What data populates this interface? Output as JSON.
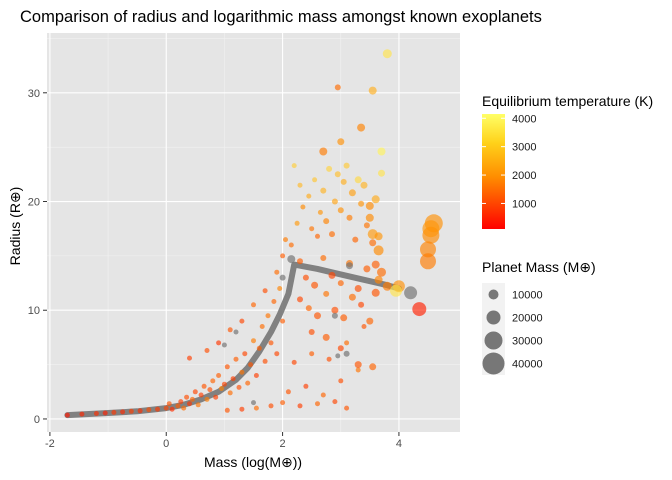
{
  "chart_data": {
    "type": "scatter",
    "title": "Comparison of radius and logarithmic mass amongst known exoplanets",
    "xlabel": "Mass (log(M⊕))",
    "ylabel": "Radius (R⊕)",
    "xlim": [
      -2.05,
      5.05
    ],
    "ylim": [
      -1.2,
      35.5
    ],
    "x_ticks": [
      -2,
      0,
      2,
      4
    ],
    "x_tick_labels": [
      "-2",
      "0",
      "2",
      "4"
    ],
    "y_ticks": [
      0,
      10,
      20,
      30
    ],
    "y_tick_labels": [
      "0",
      "10",
      "20",
      "30"
    ],
    "grid": true,
    "background": "#e5e5e5",
    "color_legend": {
      "title": "Equilibrium temperature (K)",
      "ticks": [
        1000,
        2000,
        3000,
        4000
      ],
      "tick_labels": [
        "1000",
        "2000",
        "3000",
        "4000"
      ],
      "range": [
        100,
        4150
      ],
      "low_color": "#ff0000",
      "mid_color": "#ff8c00",
      "high_color": "#ffff66"
    },
    "size_legend": {
      "title": "Planet Mass (M⊕)",
      "values": [
        10000,
        20000,
        30000,
        40000
      ],
      "labels": [
        "10000",
        "20000",
        "30000",
        "40000"
      ],
      "point_color": "#4d4d4d"
    },
    "trend_line": {
      "color": "#757575",
      "points": [
        [
          -1.7,
          0.35
        ],
        [
          -1.0,
          0.55
        ],
        [
          -0.5,
          0.7
        ],
        [
          0.0,
          1.0
        ],
        [
          0.3,
          1.3
        ],
        [
          0.6,
          1.8
        ],
        [
          0.9,
          2.5
        ],
        [
          1.2,
          3.6
        ],
        [
          1.4,
          4.7
        ],
        [
          1.6,
          6.2
        ],
        [
          1.8,
          8.0
        ],
        [
          1.95,
          9.6
        ],
        [
          2.1,
          11.5
        ],
        [
          2.2,
          14.2
        ],
        [
          2.6,
          13.8
        ],
        [
          3.0,
          13.3
        ],
        [
          3.4,
          12.8
        ],
        [
          3.8,
          12.3
        ],
        [
          4.0,
          12.0
        ]
      ]
    },
    "series": [
      {
        "points": [
          [
            -1.7,
            0.35,
            400
          ],
          [
            -1.45,
            0.45,
            600
          ],
          [
            -1.2,
            0.5,
            700
          ],
          [
            -1.05,
            0.55,
            500
          ],
          [
            -0.9,
            0.6,
            800
          ],
          [
            -0.75,
            0.65,
            650
          ],
          [
            -0.6,
            0.7,
            900
          ],
          [
            -0.45,
            0.75,
            700
          ],
          [
            -0.3,
            0.85,
            1100
          ],
          [
            -0.15,
            0.9,
            850
          ],
          [
            0.0,
            1.0,
            1000
          ],
          [
            0.05,
            1.4,
            1200
          ],
          [
            0.1,
            0.9,
            700
          ],
          [
            0.2,
            1.2,
            1300
          ],
          [
            0.25,
            1.6,
            900
          ],
          [
            0.3,
            1.0,
            1500
          ],
          [
            0.35,
            2.0,
            1100
          ],
          [
            0.4,
            1.4,
            800
          ],
          [
            0.45,
            1.8,
            1400
          ],
          [
            0.5,
            2.5,
            1000
          ],
          [
            0.55,
            1.3,
            1600
          ],
          [
            0.6,
            2.2,
            900
          ],
          [
            0.65,
            3.0,
            1200
          ],
          [
            0.7,
            1.8,
            1700
          ],
          [
            0.75,
            2.7,
            1100
          ],
          [
            0.8,
            3.5,
            1400
          ],
          [
            0.85,
            2.0,
            900
          ],
          [
            0.9,
            4.0,
            1300
          ],
          [
            0.95,
            2.8,
            1800
          ],
          [
            1.0,
            3.2,
            1000
          ],
          [
            1.05,
            4.8,
            1200
          ],
          [
            1.1,
            2.4,
            1500
          ],
          [
            1.15,
            3.7,
            900
          ],
          [
            1.2,
            5.5,
            1300
          ],
          [
            1.25,
            2.9,
            1100
          ],
          [
            1.3,
            4.3,
            1600
          ],
          [
            1.35,
            6.0,
            1000
          ],
          [
            1.4,
            3.3,
            1400
          ],
          [
            1.45,
            5.0,
            1200
          ],
          [
            1.5,
            7.2,
            1700
          ],
          [
            1.55,
            4.0,
            900
          ],
          [
            1.6,
            6.5,
            1300
          ],
          [
            1.65,
            8.5,
            1500
          ],
          [
            1.7,
            5.3,
            1100
          ],
          [
            1.75,
            9.5,
            1600
          ],
          [
            1.8,
            7.0,
            1200
          ],
          [
            1.85,
            10.8,
            1400
          ],
          [
            1.9,
            6.0,
            1000
          ],
          [
            1.95,
            12.0,
            1800
          ],
          [
            2.0,
            9.0,
            1300
          ],
          [
            0.4,
            5.6,
            900
          ],
          [
            0.7,
            6.3,
            1100
          ],
          [
            0.9,
            7.0,
            800
          ],
          [
            1.1,
            8.2,
            1200
          ],
          [
            1.3,
            9.0,
            1000
          ],
          [
            1.5,
            10.5,
            1400
          ],
          [
            1.7,
            11.8,
            1100
          ],
          [
            1.9,
            13.5,
            1500
          ],
          [
            2.0,
            15.0,
            1300
          ],
          [
            2.05,
            16.5,
            1700
          ],
          [
            1.05,
            0.8,
            1200
          ],
          [
            1.3,
            0.9,
            900
          ],
          [
            1.55,
            1.0,
            1500
          ],
          [
            1.8,
            1.2,
            1100
          ],
          [
            2.0,
            1.5,
            1300
          ],
          [
            2.3,
            1.2,
            900
          ],
          [
            2.6,
            1.4,
            1400
          ],
          [
            2.9,
            1.6,
            1000
          ],
          [
            3.1,
            1.0,
            1200
          ],
          [
            2.1,
            2.5,
            1200
          ],
          [
            2.4,
            3.0,
            900
          ],
          [
            2.7,
            2.2,
            1400
          ],
          [
            3.0,
            3.5,
            1100
          ],
          [
            3.3,
            4.5,
            1600
          ],
          [
            2.2,
            5.2,
            1000
          ],
          [
            2.5,
            6.0,
            1300
          ],
          [
            2.8,
            5.5,
            1100
          ],
          [
            3.1,
            7.0,
            1500
          ],
          [
            3.4,
            8.5,
            1200
          ],
          [
            2.15,
            16.0,
            1500
          ],
          [
            2.25,
            18.0,
            2200
          ],
          [
            2.3,
            21.5,
            2800
          ],
          [
            2.2,
            23.3,
            3200
          ],
          [
            2.35,
            19.5,
            1900
          ],
          [
            2.45,
            20.5,
            2500
          ],
          [
            2.5,
            17.5,
            1600
          ],
          [
            2.55,
            22.0,
            3000
          ],
          [
            2.6,
            16.8,
            1400
          ],
          [
            2.65,
            19.0,
            2100
          ],
          [
            2.7,
            21.0,
            2700
          ],
          [
            2.75,
            18.2,
            1800
          ],
          [
            2.8,
            23.0,
            3300
          ],
          [
            2.85,
            17.0,
            1500
          ],
          [
            2.9,
            20.0,
            2400
          ],
          [
            2.95,
            22.5,
            2900
          ],
          [
            3.0,
            19.2,
            2000
          ],
          [
            3.05,
            21.8,
            2600
          ],
          [
            3.1,
            23.3,
            3100
          ],
          [
            3.15,
            18.5,
            1700
          ],
          [
            3.2,
            20.8,
            2300
          ],
          [
            3.25,
            16.5,
            1400
          ],
          [
            3.3,
            22.0,
            3400
          ],
          [
            3.35,
            19.8,
            2100
          ],
          [
            3.4,
            21.5,
            2700
          ],
          [
            3.45,
            17.8,
            1600
          ],
          [
            3.5,
            18.5,
            1900
          ],
          [
            3.55,
            16.2,
            1500
          ],
          [
            3.6,
            20.2,
            2500
          ],
          [
            3.7,
            22.6,
            3600
          ],
          [
            2.3,
            14.5,
            1300
          ],
          [
            2.4,
            13.0,
            1100
          ],
          [
            2.55,
            12.3,
            1200
          ],
          [
            2.7,
            14.8,
            1500
          ],
          [
            2.85,
            13.2,
            1000
          ],
          [
            3.0,
            12.5,
            1400
          ],
          [
            3.15,
            14.3,
            1600
          ],
          [
            3.3,
            12.0,
            1100
          ],
          [
            3.45,
            13.8,
            1300
          ],
          [
            3.6,
            11.6,
            1200
          ],
          [
            2.3,
            11.0,
            1000
          ],
          [
            2.45,
            10.2,
            1400
          ],
          [
            2.6,
            9.5,
            1200
          ],
          [
            2.75,
            11.5,
            1600
          ],
          [
            2.9,
            10.0,
            1100
          ],
          [
            3.05,
            9.3,
            1300
          ],
          [
            3.2,
            11.2,
            1500
          ],
          [
            3.35,
            10.5,
            1000
          ],
          [
            3.5,
            9.0,
            1400
          ],
          [
            3.65,
            12.8,
            1800
          ],
          [
            2.5,
            8.0,
            1100
          ],
          [
            2.75,
            7.5,
            1300
          ],
          [
            3.0,
            6.5,
            1000
          ],
          [
            3.3,
            5.0,
            1200
          ],
          [
            3.55,
            4.8,
            1400
          ],
          [
            3.6,
            14.2,
            1300
          ],
          [
            3.7,
            13.5,
            1500
          ],
          [
            3.8,
            12.2,
            1700
          ],
          [
            3.65,
            15.5,
            1900
          ],
          [
            3.55,
            17.0,
            2200
          ],
          [
            2.95,
            30.5,
            1500
          ],
          [
            3.55,
            30.2,
            2600
          ],
          [
            3.8,
            33.6,
            3600
          ],
          [
            3.7,
            24.6,
            3900
          ],
          [
            3.35,
            26.8,
            1800
          ],
          [
            3.0,
            25.5,
            2000
          ],
          [
            2.7,
            24.6,
            1700
          ],
          [
            3.5,
            19.6,
            1900
          ],
          [
            3.65,
            16.8,
            2100
          ],
          [
            4.35,
            10.1,
            500
          ],
          [
            4.0,
            12.2,
            2000
          ],
          [
            3.95,
            11.8,
            3600
          ]
        ],
        "sizes": [
          5,
          5,
          5,
          5,
          5,
          5,
          5,
          5,
          5,
          5,
          5,
          5,
          5,
          5,
          5,
          5,
          5,
          5,
          5,
          5,
          5,
          5,
          5,
          5,
          5,
          5,
          5,
          5,
          5,
          5,
          5,
          5,
          5,
          5,
          5,
          5,
          5,
          5,
          5,
          5,
          5,
          5,
          5,
          5,
          5,
          5,
          5,
          5,
          5,
          5,
          5,
          5,
          5,
          5,
          5,
          5,
          5,
          5,
          5,
          5,
          5,
          5,
          5,
          5,
          5,
          5,
          5,
          5,
          5,
          5,
          5,
          5,
          5,
          5,
          5,
          5,
          5,
          5,
          5,
          5,
          5,
          5,
          5,
          5,
          5,
          5,
          5,
          5,
          5,
          6,
          6,
          6,
          6,
          6,
          6,
          6,
          6,
          6,
          6,
          7,
          6,
          7,
          6,
          7,
          6,
          8,
          7,
          8,
          7,
          6,
          6,
          7,
          6,
          7,
          6,
          7,
          7,
          7,
          8,
          6,
          6,
          7,
          6,
          7,
          7,
          7,
          6,
          7,
          8,
          6,
          7,
          6,
          7,
          7,
          8,
          9,
          9,
          10,
          10,
          6,
          8,
          9,
          8,
          8,
          7,
          8,
          8,
          8,
          14,
          12,
          12
        ]
      },
      {
        "name": "",
        "points": [
          [
            4.6,
            18.0,
            2000
          ],
          [
            4.55,
            16.9,
            1900
          ],
          [
            4.5,
            15.6,
            1800
          ],
          [
            4.5,
            14.5,
            1700
          ],
          [
            4.55,
            17.5,
            2100
          ]
        ],
        "sizes": [
          18,
          17,
          16,
          16,
          17
        ]
      },
      {
        "points": [
          [
            1.5,
            1.5,
            null
          ],
          [
            2.0,
            13.0,
            null
          ],
          [
            1.0,
            6.8,
            null
          ],
          [
            2.9,
            9.5,
            null
          ],
          [
            3.1,
            6.0,
            null
          ],
          [
            2.95,
            5.8,
            null
          ],
          [
            3.15,
            14.1,
            null
          ],
          [
            4.2,
            11.6,
            null
          ],
          [
            2.15,
            14.7,
            null
          ],
          [
            1.2,
            8.0,
            null
          ]
        ],
        "sizes": [
          5,
          6,
          5,
          6,
          6,
          5,
          7,
          13,
          8,
          5
        ]
      }
    ]
  }
}
